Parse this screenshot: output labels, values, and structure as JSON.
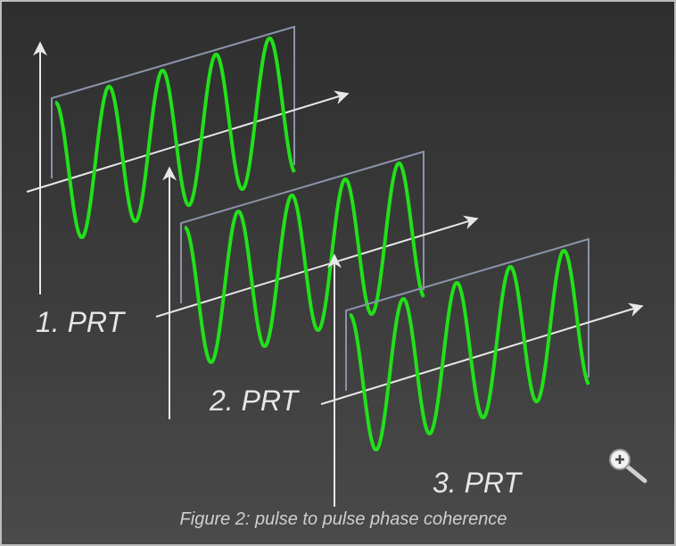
{
  "labels": [
    "1. PRT",
    "2. PRT",
    "3. PRT"
  ],
  "caption": "Figure 2: pulse to pulse phase coherence"
}
